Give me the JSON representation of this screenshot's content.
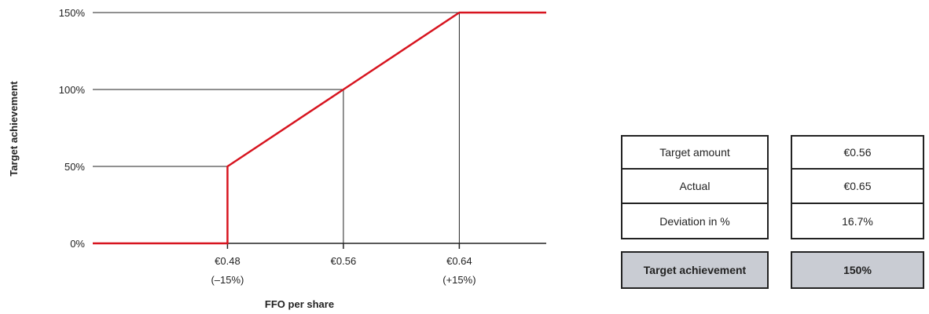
{
  "chart_data": {
    "type": "line",
    "ylabel": "Target achievement",
    "xlabel": "FFO per share",
    "y_ticks": [
      "0%",
      "50%",
      "100%",
      "150%"
    ],
    "y_tick_values": [
      0,
      50,
      100,
      150
    ],
    "ylim": [
      0,
      150
    ],
    "x_ticks": [
      {
        "value": 0.48,
        "label": "€0.48",
        "sub": "(–15%)"
      },
      {
        "value": 0.56,
        "label": "€0.56",
        "sub": ""
      },
      {
        "value": 0.64,
        "label": "€0.64",
        "sub": "(+15%)"
      }
    ],
    "xlim": [
      0.387,
      0.7
    ],
    "series": [
      {
        "color": "#d7141f",
        "points": [
          [
            0.387,
            0
          ],
          [
            0.48,
            0
          ],
          [
            0.48,
            50
          ],
          [
            0.56,
            100
          ],
          [
            0.64,
            150
          ],
          [
            0.7,
            150
          ]
        ]
      }
    ],
    "grid_y": true,
    "drop_lines_at": [
      0.48,
      0.56,
      0.64
    ]
  },
  "table": {
    "rows": [
      {
        "label": "Target amount",
        "value": "€0.56"
      },
      {
        "label": "Actual",
        "value": "€0.65"
      },
      {
        "label": "Deviation in %",
        "value": "16.7%"
      }
    ],
    "total": {
      "label": "Target achievement",
      "value": "150%"
    }
  }
}
